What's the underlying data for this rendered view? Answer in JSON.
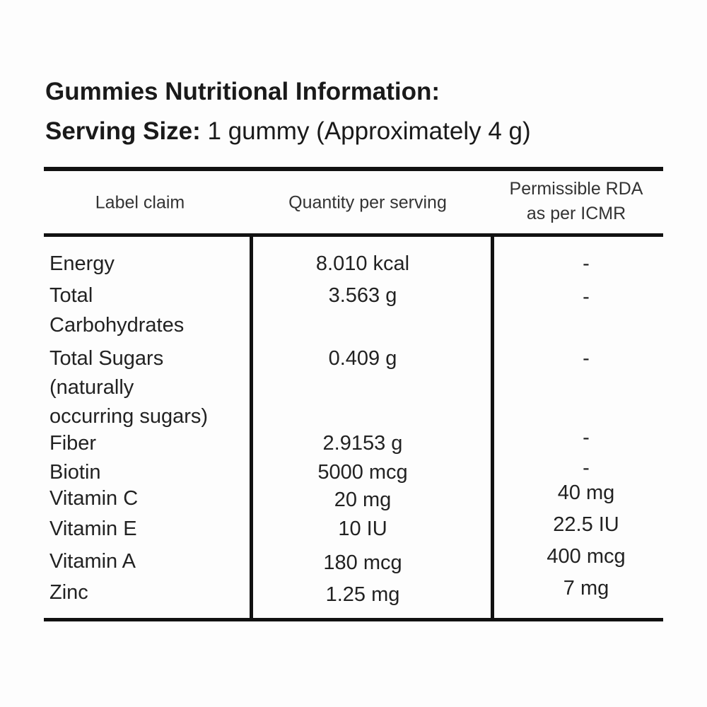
{
  "title": "Gummies Nutritional Information:",
  "serving": {
    "label": "Serving Size:",
    "value": "1 gummy (Approximately 4 g)"
  },
  "table": {
    "headers": [
      "Label claim",
      "Quantity per serving",
      "Permissible RDA as per ICMR"
    ],
    "header_rda_lines": [
      "Permissible RDA",
      "as per ICMR"
    ],
    "rows": [
      {
        "claim": [
          "Energy"
        ],
        "quantity": "8.010 kcal",
        "rda": "-"
      },
      {
        "claim": [
          "Total",
          "Carbohydrates"
        ],
        "quantity": "3.563 g",
        "rda": "-"
      },
      {
        "claim": [
          "Total Sugars",
          "(naturally",
          "occurring sugars)"
        ],
        "quantity": "0.409 g",
        "rda": "-"
      },
      {
        "claim": [
          "Fiber"
        ],
        "quantity": "2.9153 g",
        "rda": "-"
      },
      {
        "claim": [
          "Biotin"
        ],
        "quantity": "5000 mcg",
        "rda": "-"
      },
      {
        "claim": [
          "Vitamin C"
        ],
        "quantity": "20 mg",
        "rda": "40 mg"
      },
      {
        "claim": [
          "Vitamin E"
        ],
        "quantity": "10 IU",
        "rda": "22.5 IU"
      },
      {
        "claim": [
          "Vitamin A"
        ],
        "quantity": "180 mcg",
        "rda": "400 mcg"
      },
      {
        "claim": [
          "Zinc"
        ],
        "quantity": "1.25 mg",
        "rda": "7 mg"
      }
    ]
  }
}
